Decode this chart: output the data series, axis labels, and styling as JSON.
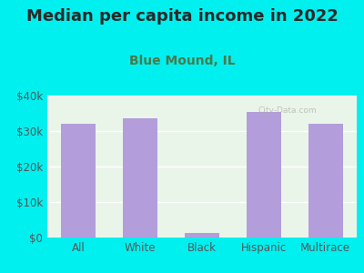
{
  "title": "Median per capita income in 2022",
  "subtitle": "Blue Mound, IL",
  "categories": [
    "All",
    "White",
    "Black",
    "Hispanic",
    "Multirace"
  ],
  "values": [
    32000,
    33500,
    1200,
    35500,
    32000
  ],
  "bar_color": "#b39ddb",
  "background_outer": "#00f0f0",
  "background_inner": "#eaf5ea",
  "title_color": "#2a2a2a",
  "subtitle_color": "#4a7a4a",
  "axis_label_color": "#555555",
  "ylim": [
    0,
    40000
  ],
  "yticks": [
    0,
    10000,
    20000,
    30000,
    40000
  ],
  "ytick_labels": [
    "$0",
    "$10k",
    "$20k",
    "$30k",
    "$40k"
  ],
  "title_fontsize": 13,
  "subtitle_fontsize": 10,
  "tick_fontsize": 8.5
}
